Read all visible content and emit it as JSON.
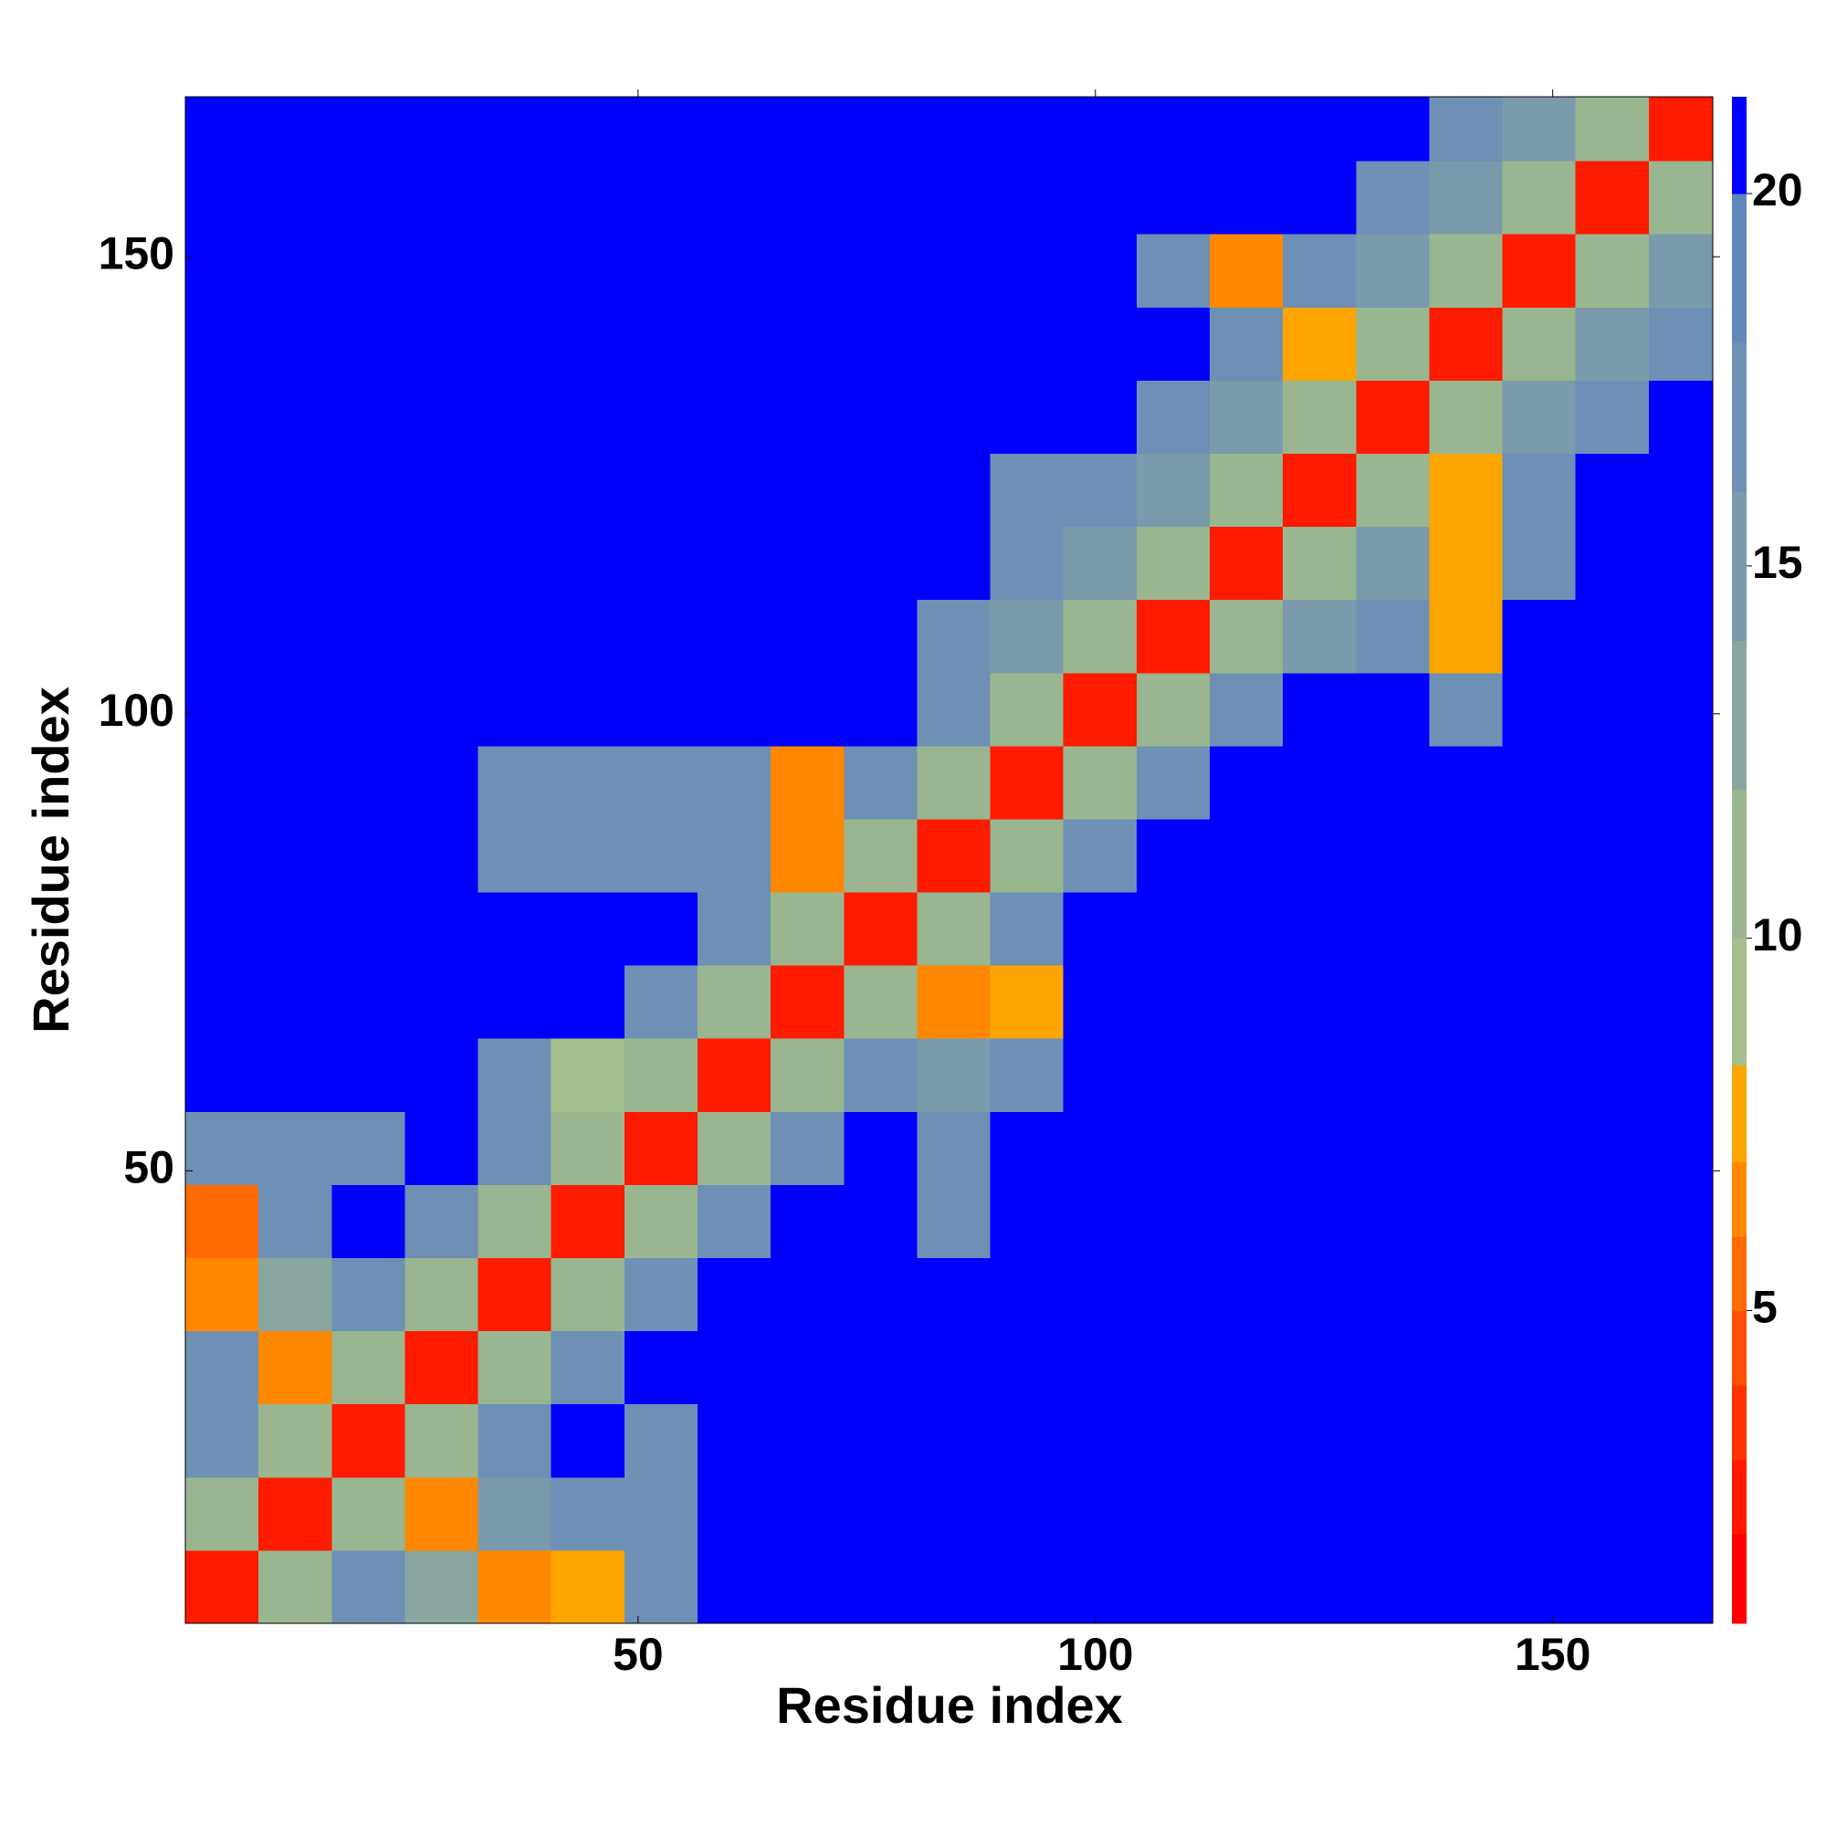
{
  "chart_data": {
    "type": "heatmap",
    "xlabel": "Residue index",
    "ylabel": "Residue index",
    "xlim": [
      0.5,
      167.5
    ],
    "ylim": [
      0.5,
      167.5
    ],
    "xticks": [
      50,
      100,
      150
    ],
    "yticks": [
      50,
      100,
      150
    ],
    "xbins": [
      0.5,
      8.5,
      16.5,
      24.5,
      32.5,
      40.5,
      48.5,
      56.5,
      64.5,
      72.5,
      80.5,
      88.5,
      96.5,
      104.5,
      112.5,
      120.5,
      128.5,
      136.5,
      144.5,
      152.5,
      160.5,
      167.5
    ],
    "ybins": [
      0.5,
      8.5,
      16.5,
      24.5,
      32.5,
      40.5,
      48.5,
      56.5,
      64.5,
      72.5,
      80.5,
      88.5,
      96.5,
      104.5,
      112.5,
      120.5,
      128.5,
      136.5,
      144.5,
      152.5,
      160.5,
      167.5
    ],
    "z": [
      [
        3,
        11,
        18,
        14,
        7,
        8,
        17,
        21,
        21,
        21,
        21,
        21,
        21,
        21,
        21,
        21,
        21,
        21,
        21,
        21,
        21
      ],
      [
        11,
        3,
        11,
        7,
        15,
        17,
        18,
        21,
        21,
        21,
        21,
        21,
        21,
        21,
        21,
        21,
        21,
        21,
        21,
        21,
        21
      ],
      [
        18,
        11,
        3,
        11,
        18,
        21,
        18,
        21,
        21,
        21,
        21,
        21,
        21,
        21,
        21,
        21,
        21,
        21,
        21,
        21,
        21
      ],
      [
        17,
        7,
        11,
        3,
        11,
        18,
        21,
        21,
        21,
        21,
        21,
        21,
        21,
        21,
        21,
        21,
        21,
        21,
        21,
        21,
        21
      ],
      [
        7,
        14,
        18,
        11,
        3,
        11,
        18,
        21,
        21,
        21,
        21,
        21,
        21,
        21,
        21,
        21,
        21,
        21,
        21,
        21,
        21
      ],
      [
        6,
        17,
        21,
        18,
        11,
        3,
        11,
        18,
        21,
        21,
        18,
        21,
        21,
        21,
        21,
        21,
        21,
        21,
        21,
        21,
        21
      ],
      [
        17,
        17,
        17,
        21,
        18,
        11,
        3,
        11,
        18,
        21,
        18,
        21,
        21,
        21,
        21,
        21,
        21,
        21,
        21,
        21,
        21
      ],
      [
        21,
        21,
        21,
        21,
        18,
        9,
        11,
        3,
        11,
        18,
        16,
        17,
        21,
        21,
        21,
        21,
        21,
        21,
        21,
        21,
        21
      ],
      [
        21,
        21,
        21,
        21,
        21,
        21,
        18,
        11,
        3,
        11,
        7,
        8,
        21,
        21,
        21,
        21,
        21,
        21,
        21,
        21,
        21
      ],
      [
        21,
        21,
        21,
        21,
        21,
        21,
        21,
        18,
        11,
        3,
        11,
        18,
        21,
        21,
        21,
        21,
        21,
        21,
        21,
        21,
        21
      ],
      [
        21,
        21,
        21,
        21,
        18,
        18,
        18,
        17,
        7,
        11,
        3,
        11,
        18,
        21,
        21,
        21,
        21,
        21,
        21,
        21,
        21
      ],
      [
        21,
        21,
        21,
        21,
        18,
        18,
        18,
        18,
        7,
        18,
        11,
        3,
        11,
        17,
        21,
        21,
        21,
        21,
        21,
        21,
        21
      ],
      [
        21,
        21,
        21,
        21,
        21,
        21,
        21,
        21,
        21,
        21,
        18,
        11,
        3,
        11,
        18,
        21,
        21,
        18,
        21,
        21,
        21
      ],
      [
        21,
        21,
        21,
        21,
        21,
        21,
        21,
        21,
        21,
        21,
        18,
        15,
        11,
        3,
        11,
        15,
        18,
        8,
        21,
        21,
        21
      ],
      [
        21,
        21,
        21,
        21,
        21,
        21,
        21,
        21,
        21,
        21,
        21,
        18,
        15,
        11,
        3,
        11,
        15,
        8,
        17,
        21,
        21
      ],
      [
        21,
        21,
        21,
        21,
        21,
        21,
        21,
        21,
        21,
        21,
        21,
        18,
        18,
        15,
        11,
        3,
        11,
        8,
        18,
        21,
        21
      ],
      [
        21,
        21,
        21,
        21,
        21,
        21,
        21,
        21,
        21,
        21,
        21,
        21,
        21,
        18,
        15,
        11,
        3,
        11,
        15,
        18,
        21
      ],
      [
        21,
        21,
        21,
        21,
        21,
        21,
        21,
        21,
        21,
        21,
        21,
        21,
        21,
        21,
        18,
        8,
        11,
        3,
        11,
        15,
        18
      ],
      [
        21,
        21,
        21,
        21,
        21,
        21,
        21,
        21,
        21,
        21,
        21,
        21,
        21,
        17,
        7,
        18,
        15,
        11,
        3,
        11,
        15
      ],
      [
        21,
        21,
        21,
        21,
        21,
        21,
        21,
        21,
        21,
        21,
        21,
        21,
        21,
        21,
        21,
        21,
        18,
        15,
        11,
        3,
        11
      ],
      [
        21,
        21,
        21,
        21,
        21,
        21,
        21,
        21,
        21,
        21,
        21,
        21,
        21,
        21,
        21,
        21,
        21,
        18,
        15,
        11,
        3
      ]
    ],
    "levels": [
      0.8,
      2,
      3,
      4,
      5,
      6,
      7,
      8.3,
      10,
      12,
      14,
      16,
      18,
      20,
      21.3
    ],
    "colors": [
      "#ff0000",
      "#ff1a00",
      "#ff3300",
      "#ff5000",
      "#ff6a00",
      "#ff8800",
      "#ffa500",
      "#a4bf8c",
      "#99b690",
      "#8aa6a0",
      "#7b9aab",
      "#6e90b4",
      "#6288bb",
      "#0000ff"
    ],
    "cticks": [
      5,
      10,
      15,
      20
    ]
  }
}
